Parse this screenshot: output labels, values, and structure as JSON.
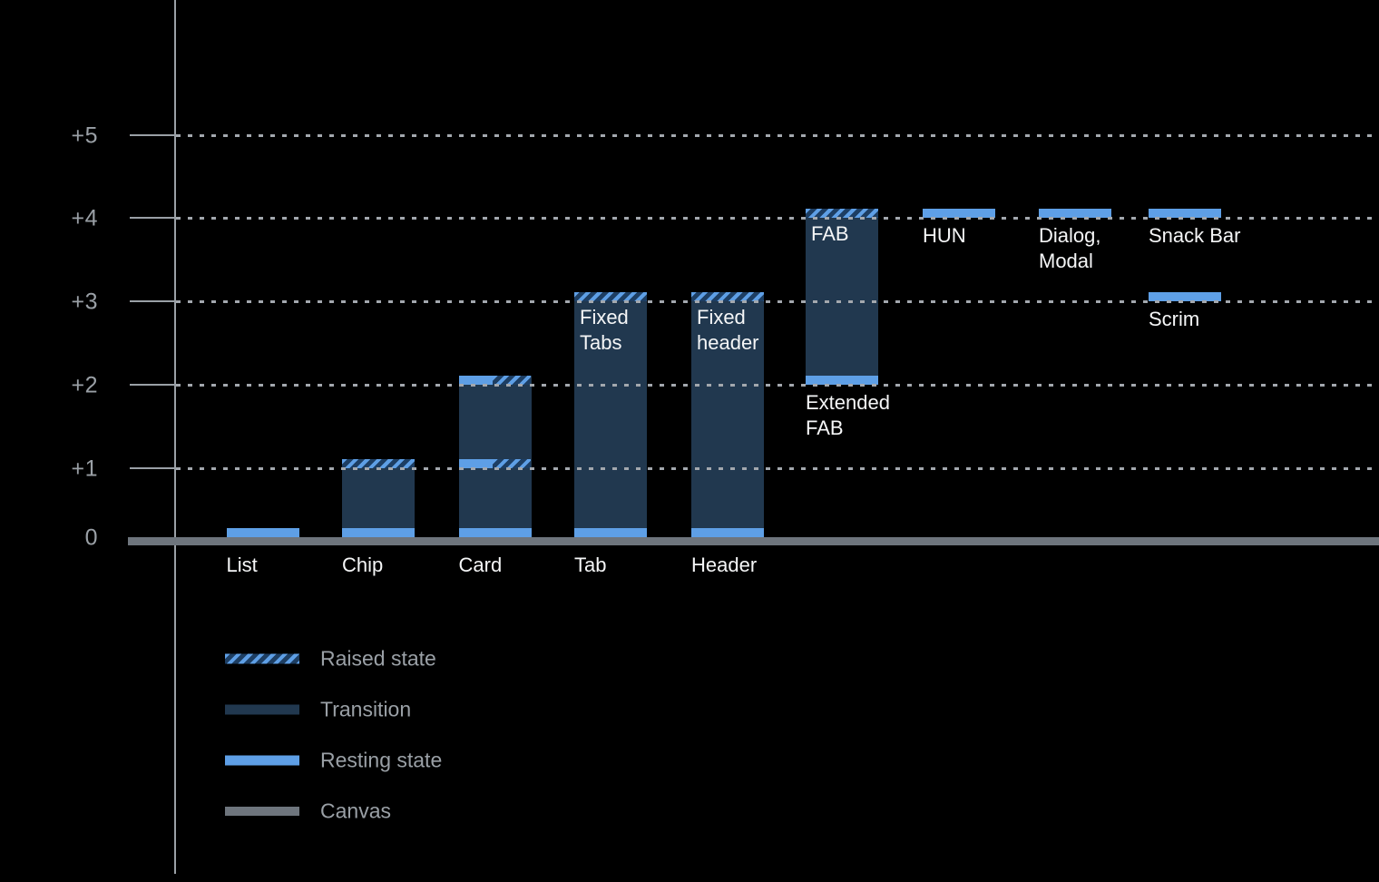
{
  "chart_data": {
    "type": "bar",
    "title": "",
    "description": "Elevation levels of UI components with resting, raised and transition ranges over a canvas baseline",
    "y_axis": {
      "tick_labels": [
        "+5",
        "+4",
        "+3",
        "+2",
        "+1",
        "0"
      ],
      "levels": [
        5,
        4,
        3,
        2,
        1,
        0
      ],
      "range": [
        0,
        5
      ],
      "grid": "dotted horizontal lines at +1 through +5"
    },
    "items": [
      {
        "id": "list",
        "axis_label": "List",
        "resting": [
          0
        ],
        "raised": [],
        "split": [],
        "transition": null
      },
      {
        "id": "chip",
        "axis_label": "Chip",
        "resting": [
          0
        ],
        "raised": [
          1
        ],
        "split": [],
        "transition": [
          0,
          1
        ]
      },
      {
        "id": "card",
        "axis_label": "Card",
        "resting": [
          0
        ],
        "raised": [],
        "split": [
          1,
          2
        ],
        "transition": [
          0,
          2
        ]
      },
      {
        "id": "tab",
        "axis_label": "Tab",
        "inner_label": "Fixed\nTabs",
        "resting": [
          0
        ],
        "raised": [
          3
        ],
        "split": [],
        "transition": [
          0,
          3
        ]
      },
      {
        "id": "header",
        "axis_label": "Header",
        "inner_label": "Fixed\nheader",
        "resting": [
          0
        ],
        "raised": [
          3
        ],
        "split": [],
        "transition": [
          0,
          3
        ]
      },
      {
        "id": "fab",
        "inner_label": "FAB",
        "below_label": "Extended\nFAB",
        "below_at": 2,
        "resting": [
          2
        ],
        "raised": [
          4
        ],
        "split": [],
        "transition": [
          2,
          4
        ]
      },
      {
        "id": "hun",
        "below_label": "HUN",
        "below_at": 4,
        "resting": [
          4
        ],
        "raised": [],
        "split": [],
        "transition": null
      },
      {
        "id": "dialog",
        "below_label": "Dialog,\nModal",
        "below_at": 4,
        "resting": [
          4
        ],
        "raised": [],
        "split": [],
        "transition": null
      },
      {
        "id": "snackbar",
        "below_label": "Snack Bar",
        "below_at": 4,
        "resting": [
          4
        ],
        "raised": [],
        "split": [],
        "transition": null
      },
      {
        "id": "scrim",
        "below_label": "Scrim",
        "below_at": 3,
        "resting": [
          3
        ],
        "raised": [],
        "split": [],
        "transition": null
      }
    ],
    "legend": [
      {
        "label": "Raised state",
        "swatch": "raised"
      },
      {
        "label": "Transition",
        "swatch": "transition"
      },
      {
        "label": "Resting state",
        "swatch": "resting"
      },
      {
        "label": "Canvas",
        "swatch": "canvas"
      }
    ],
    "legend_position": "bottom-left",
    "colors": {
      "background": "#000000",
      "resting": "#5E9FE6",
      "transition": "#21384F",
      "raised_stripe": "#5E9FE6",
      "raised_bg": "#1D3E63",
      "canvas": "#6E757D",
      "axis": "#9AA0A6",
      "label_text": "#F5F6F7"
    }
  }
}
